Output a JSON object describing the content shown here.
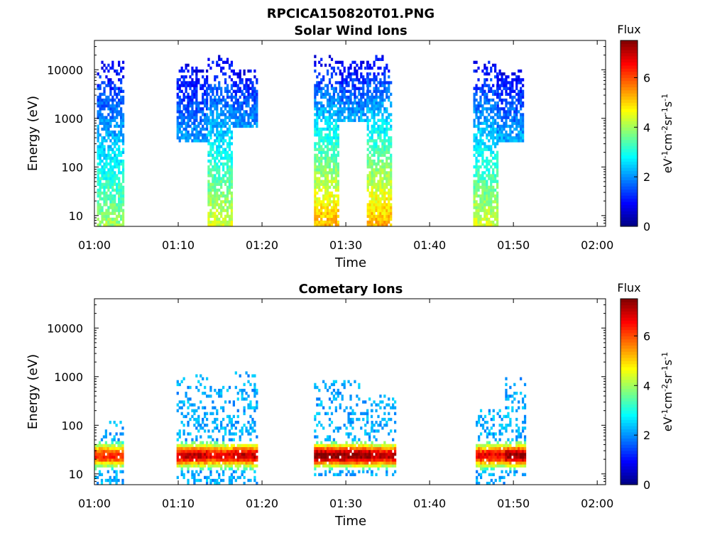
{
  "figure_title": "RPCICA150820T01.PNG",
  "chart_data": [
    {
      "type": "heatmap",
      "title": "Solar Wind Ions",
      "xlabel": "Time",
      "ylabel": "Energy (eV)",
      "xticks": [
        "01:00",
        "01:10",
        "01:20",
        "01:30",
        "01:40",
        "01:50",
        "02:00"
      ],
      "x_range_minutes": [
        0,
        61
      ],
      "y_scale": "log",
      "y_range_eV": [
        6,
        40000
      ],
      "yticks": [
        "10",
        "100",
        "1000",
        "10000"
      ],
      "colorbar": {
        "title": "Flux",
        "label": "eV-1cm-2sr-1s-1",
        "range": [
          0,
          7.5
        ],
        "ticks": [
          "0",
          "2",
          "4",
          "6"
        ]
      },
      "blobs": [
        {
          "t": [
            0.3,
            3.5
          ],
          "e": [
            6,
            15000
          ],
          "peak_flux": 3.5
        },
        {
          "t": [
            9.8,
            13.5
          ],
          "e": [
            300,
            12000
          ],
          "peak_flux": 1.5
        },
        {
          "t": [
            13.5,
            16.5
          ],
          "e": [
            6,
            18000
          ],
          "peak_flux": 4
        },
        {
          "t": [
            16.5,
            19.5
          ],
          "e": [
            600,
            10000
          ],
          "peak_flux": 1.5
        },
        {
          "t": [
            26.2,
            29.2
          ],
          "e": [
            6,
            18000
          ],
          "peak_flux": 5
        },
        {
          "t": [
            29.2,
            32.5
          ],
          "e": [
            800,
            14000
          ],
          "peak_flux": 1.6
        },
        {
          "t": [
            32.5,
            35.5
          ],
          "e": [
            6,
            20000
          ],
          "peak_flux": 5
        },
        {
          "t": [
            45.2,
            48
          ],
          "e": [
            6,
            15000
          ],
          "peak_flux": 4
        },
        {
          "t": [
            48,
            51.2
          ],
          "e": [
            300,
            10000
          ],
          "peak_flux": 1.6
        }
      ]
    },
    {
      "type": "heatmap",
      "title": "Cometary Ions",
      "xlabel": "Time",
      "ylabel": "Energy (eV)",
      "xticks": [
        "01:00",
        "01:10",
        "01:20",
        "01:30",
        "01:40",
        "01:50",
        "02:00"
      ],
      "x_range_minutes": [
        0,
        61
      ],
      "y_scale": "log",
      "y_range_eV": [
        6,
        40000
      ],
      "yticks": [
        "10",
        "100",
        "1000",
        "10000"
      ],
      "colorbar": {
        "title": "Flux",
        "label": "eV-1cm-2sr-1s-1",
        "range": [
          0,
          7.5
        ],
        "ticks": [
          "0",
          "2",
          "4",
          "6"
        ]
      },
      "blobs": [
        {
          "t": [
            0,
            3.5
          ],
          "e": [
            6,
            120
          ],
          "peak_flux": 5.5
        },
        {
          "t": [
            9.8,
            13.5
          ],
          "e": [
            6,
            1000
          ],
          "peak_flux": 6.5
        },
        {
          "t": [
            13.5,
            16.5
          ],
          "e": [
            6,
            600
          ],
          "peak_flux": 6
        },
        {
          "t": [
            16.5,
            19.5
          ],
          "e": [
            6,
            1200
          ],
          "peak_flux": 6.5
        },
        {
          "t": [
            26.2,
            33
          ],
          "e": [
            8,
            800
          ],
          "peak_flux": 7.2
        },
        {
          "t": [
            33,
            36
          ],
          "e": [
            8,
            400
          ],
          "peak_flux": 6.5
        },
        {
          "t": [
            45.5,
            49
          ],
          "e": [
            6,
            200
          ],
          "peak_flux": 6
        },
        {
          "t": [
            49,
            51.5
          ],
          "e": [
            8,
            900
          ],
          "peak_flux": 7
        }
      ]
    }
  ]
}
